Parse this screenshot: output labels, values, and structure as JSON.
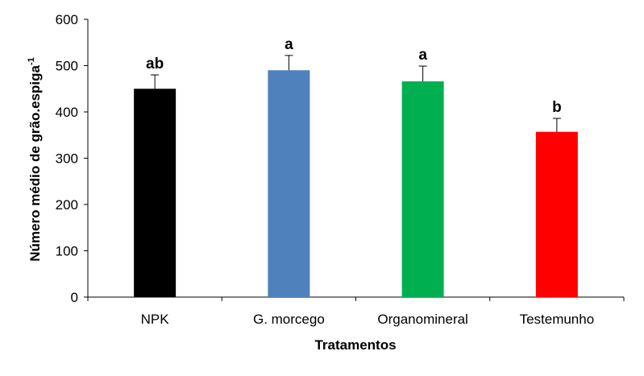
{
  "chart_data": {
    "type": "bar",
    "categories": [
      "NPK",
      "G. morcego",
      "Organomineral",
      "Testemunho"
    ],
    "values": [
      450,
      490,
      466,
      357
    ],
    "error_plus": [
      30,
      32,
      33,
      29
    ],
    "significance_labels": [
      "ab",
      "a",
      "a",
      "b"
    ],
    "colors": [
      "#000000",
      "#4F81BD",
      "#00B050",
      "#FF0000"
    ],
    "xlabel": "Tratamentos",
    "ylabel_main": "Número médio de grão.espiga",
    "ylabel_superscript": "-1",
    "ylim": [
      0,
      600
    ],
    "yticks": [
      0,
      100,
      200,
      300,
      400,
      500,
      600
    ],
    "grid": false,
    "legend": "none"
  }
}
